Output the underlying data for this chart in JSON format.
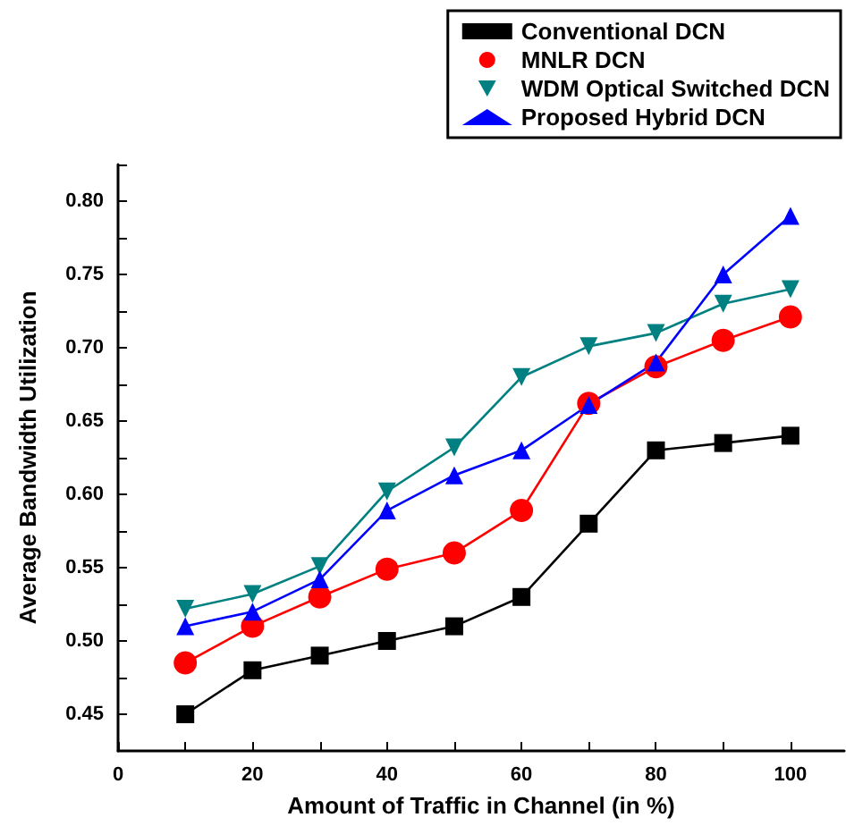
{
  "chart_data": {
    "type": "line",
    "xlabel": "Amount of Traffic in Channel (in %)",
    "ylabel": "Average Bandwidth Utilization",
    "x": [
      10,
      20,
      30,
      40,
      50,
      60,
      70,
      80,
      90,
      100
    ],
    "series": [
      {
        "name": "Conventional DCN",
        "color": "#000000",
        "marker": "square",
        "values": [
          0.45,
          0.48,
          0.49,
          0.5,
          0.51,
          0.53,
          0.58,
          0.63,
          0.635,
          0.64
        ]
      },
      {
        "name": "MNLR DCN",
        "color": "#ff0000",
        "marker": "circle",
        "values": [
          0.485,
          0.51,
          0.53,
          0.549,
          0.56,
          0.589,
          0.662,
          0.687,
          0.705,
          0.721
        ]
      },
      {
        "name": "WDM Optical Switched DCN",
        "color": "#008080",
        "marker": "triangle-down",
        "values": [
          0.522,
          0.532,
          0.551,
          0.602,
          0.632,
          0.68,
          0.701,
          0.71,
          0.73,
          0.74
        ]
      },
      {
        "name": "Proposed Hybrid DCN",
        "color": "#0000ff",
        "marker": "triangle",
        "values": [
          0.51,
          0.52,
          0.542,
          0.589,
          0.613,
          0.63,
          0.661,
          0.69,
          0.75,
          0.79
        ]
      }
    ],
    "xlim": [
      0,
      108
    ],
    "xticks": [
      0,
      {
        "value": 10,
        "label": null
      },
      20,
      {
        "value": 30,
        "label": null
      },
      40,
      {
        "value": 50,
        "label": null
      },
      60,
      {
        "value": 70,
        "label": null
      },
      80,
      {
        "value": 90,
        "label": null
      },
      100
    ],
    "ylim": [
      0.425,
      0.825
    ],
    "yticks": [
      {
        "value": 0.45,
        "label": "0.45"
      },
      {
        "value": 0.475,
        "label": null
      },
      {
        "value": 0.5,
        "label": "0.50"
      },
      {
        "value": 0.525,
        "label": null
      },
      {
        "value": 0.55,
        "label": "0.55"
      },
      {
        "value": 0.575,
        "label": null
      },
      {
        "value": 0.6,
        "label": "0.60"
      },
      {
        "value": 0.625,
        "label": null
      },
      {
        "value": 0.65,
        "label": "0.65"
      },
      {
        "value": 0.675,
        "label": null
      },
      {
        "value": 0.7,
        "label": "0.70"
      },
      {
        "value": 0.725,
        "label": null
      },
      {
        "value": 0.75,
        "label": "0.75"
      },
      {
        "value": 0.775,
        "label": null
      },
      {
        "value": 0.8,
        "label": "0.80"
      },
      {
        "value": 0.825,
        "label": null
      }
    ],
    "grid": false,
    "legend": "top right",
    "line_style": "solid"
  }
}
